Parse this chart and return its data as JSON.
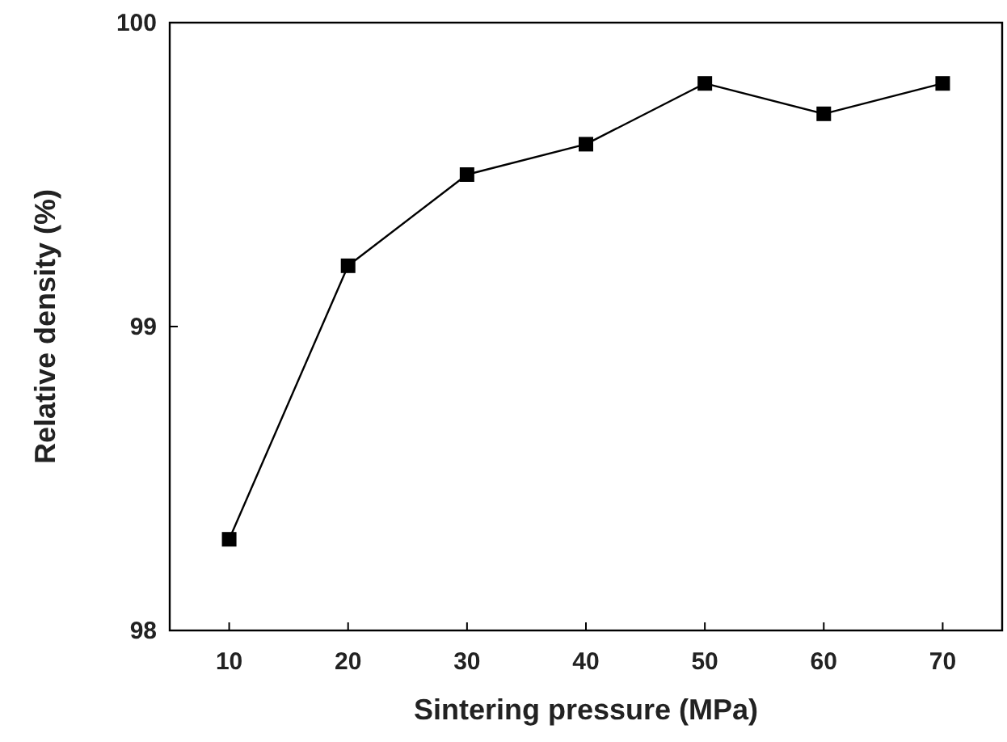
{
  "chart_data": {
    "type": "line",
    "xlabel": "Sintering pressure (MPa)",
    "ylabel": "Relative density (%)",
    "x": [
      10,
      20,
      30,
      40,
      50,
      60,
      70
    ],
    "series": [
      {
        "color": "#000000",
        "values": [
          98.3,
          99.2,
          99.5,
          99.6,
          99.8,
          99.7,
          99.8
        ]
      }
    ],
    "xlim": [
      5,
      75
    ],
    "xticks": [
      10,
      20,
      30,
      40,
      50,
      60,
      70
    ],
    "ylim": [
      98,
      100
    ],
    "yticks": [
      98,
      99,
      100
    ],
    "marker": "square",
    "line_style": "solid"
  }
}
